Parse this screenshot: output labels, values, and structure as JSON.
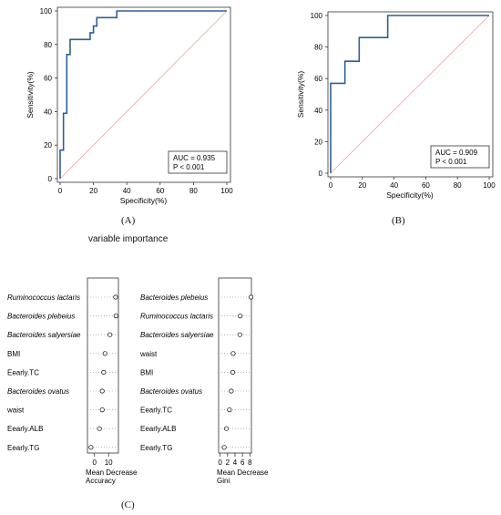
{
  "panels": {
    "A": "(A)",
    "B": "(B)",
    "C": "(C)"
  },
  "chart_data": [
    {
      "type": "line",
      "panel": "A",
      "xlabel": "Specificity(%)",
      "ylabel": "Sensitivity(%)",
      "xlim": [
        0,
        100
      ],
      "ylim": [
        0,
        100
      ],
      "xticks": [
        "0",
        "20",
        "40",
        "60",
        "80",
        "100"
      ],
      "yticks": [
        "0",
        "20",
        "40",
        "60",
        "80",
        "100"
      ],
      "series": [
        {
          "color": "#2e5e99",
          "x": [
            0,
            0,
            2,
            2,
            4,
            4,
            6,
            6,
            18,
            18,
            20,
            20,
            22,
            22,
            34,
            34,
            100
          ],
          "y": [
            0,
            17,
            17,
            39,
            39,
            74,
            74,
            83,
            83,
            87,
            87,
            91,
            91,
            96,
            96,
            100,
            100
          ]
        }
      ],
      "reference_line": {
        "x": [
          0,
          100
        ],
        "y": [
          0,
          100
        ],
        "color": "#f0a0a0"
      },
      "annotation": {
        "auc": "AUC = 0.935",
        "p": "P < 0.001"
      }
    },
    {
      "type": "line",
      "panel": "B",
      "xlabel": "Specificity(%)",
      "ylabel": "Sensitivity(%)",
      "xlim": [
        0,
        100
      ],
      "ylim": [
        0,
        100
      ],
      "xticks": [
        "0",
        "20",
        "40",
        "60",
        "80",
        "100"
      ],
      "yticks": [
        "0",
        "20",
        "40",
        "60",
        "80",
        "100"
      ],
      "series": [
        {
          "color": "#2e5e99",
          "x": [
            0,
            0,
            9,
            9,
            18,
            18,
            36,
            36,
            100
          ],
          "y": [
            0,
            57,
            57,
            71,
            71,
            86,
            86,
            100,
            100
          ]
        }
      ],
      "reference_line": {
        "x": [
          0,
          100
        ],
        "y": [
          0,
          100
        ],
        "color": "#f0a0a0"
      },
      "annotation": {
        "auc": "AUC = 0.909",
        "p": "P < 0.001"
      }
    },
    {
      "type": "scatter",
      "panel": "C-left",
      "title": "variable importance",
      "xlabel": "Mean Decrease Accuracy",
      "xticks": [
        "0",
        "10"
      ],
      "xlim": [
        -5,
        17
      ],
      "categories": [
        "Ruminococcus lactaris",
        "Bacteroides plebeius",
        "Bacteroides salyersiae",
        "BMI",
        "Eearly.TC",
        "Bacteroides ovatus",
        "waist",
        "Eearly.ALB",
        "Eearly.TG"
      ],
      "italic": [
        true,
        true,
        true,
        false,
        false,
        true,
        false,
        false,
        false
      ],
      "values": [
        15,
        15.3,
        11,
        7.5,
        6.5,
        5.5,
        5.5,
        3.5,
        -2.5
      ]
    },
    {
      "type": "scatter",
      "panel": "C-right",
      "xlabel": "Mean Decrease Gini",
      "xticks": [
        "0",
        "2",
        "4",
        "6",
        "8"
      ],
      "xlim": [
        -0.4,
        8.4
      ],
      "categories": [
        "Bacteroides plebeius",
        "Ruminococcus lactaris",
        "Bacteroides salyersiae",
        "waist",
        "BMI",
        "Bacteroides ovatus",
        "Eearly.TC",
        "Eearly.ALB",
        "Eearly.TG"
      ],
      "italic": [
        true,
        true,
        true,
        false,
        false,
        true,
        false,
        false,
        false
      ],
      "values": [
        8.3,
        5.4,
        5.3,
        3.5,
        3.4,
        3.0,
        2.5,
        1.7,
        1.1
      ]
    }
  ]
}
